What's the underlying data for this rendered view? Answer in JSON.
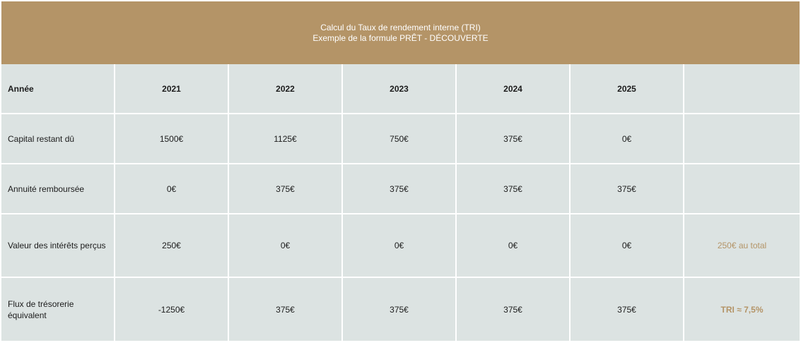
{
  "title": {
    "line1": "Calcul du Taux de rendement interne (TRI)",
    "line2": "Exemple de la formule PRÊT - DÉCOUVERTE"
  },
  "years": {
    "label": "Année",
    "values": [
      "2021",
      "2022",
      "2023",
      "2024",
      "2025"
    ],
    "note": ""
  },
  "rows": [
    {
      "label": "Capital restant dû",
      "values": [
        "1500€",
        "1125€",
        "750€",
        "375€",
        "0€"
      ],
      "note": ""
    },
    {
      "label": "Annuité remboursée",
      "values": [
        "0€",
        "375€",
        "375€",
        "375€",
        "375€"
      ],
      "note": ""
    },
    {
      "label": "Valeur des intérêts perçus",
      "values": [
        "250€",
        "0€",
        "0€",
        "0€",
        "0€"
      ],
      "note": "250€ au total"
    },
    {
      "label": "Flux de trésorerie équivalent",
      "values": [
        "-1250€",
        "375€",
        "375€",
        "375€",
        "375€"
      ],
      "note": "TRI ≈ 7,5%"
    }
  ],
  "colors": {
    "header_bg": "#b49467",
    "cell_bg": "#dce3e2",
    "accent_text": "#b49467"
  }
}
